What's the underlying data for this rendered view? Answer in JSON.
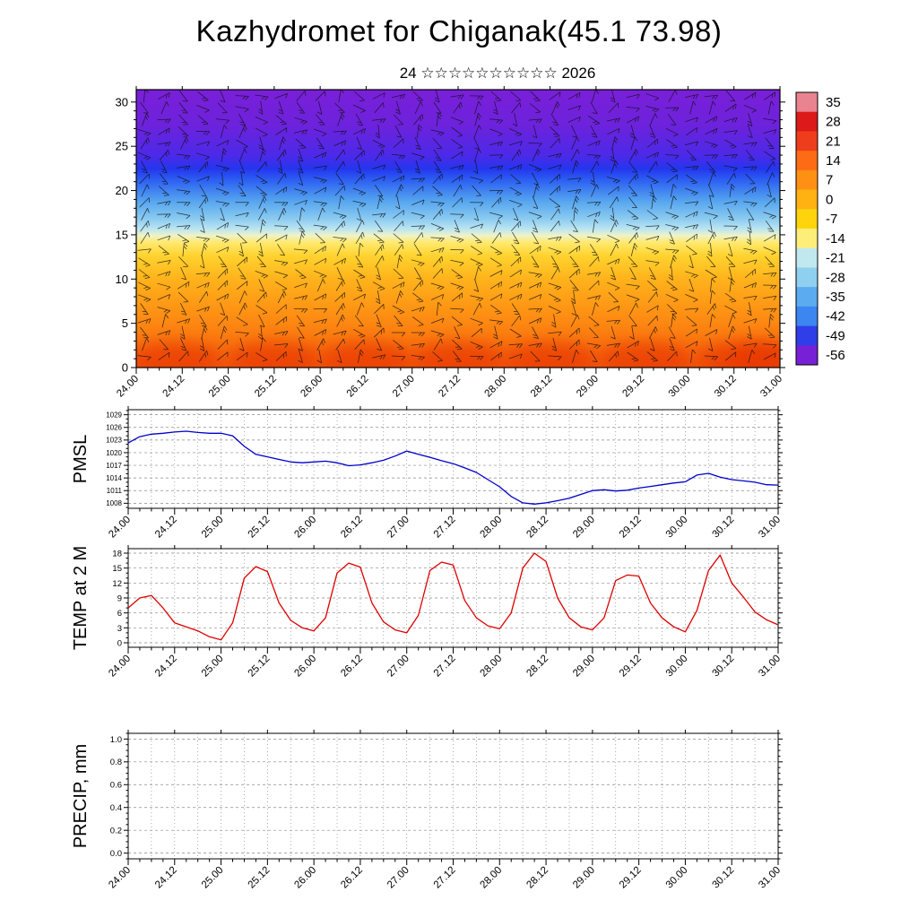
{
  "title": "Kazhydromet for Chiganak(45.1 73.98)",
  "subtitle": "24 ☆☆☆☆☆☆☆☆☆☆ 2026",
  "x_axis": {
    "labels": [
      "24.00",
      "24.12",
      "25.00",
      "25.12",
      "26.00",
      "26.12",
      "27.00",
      "27.12",
      "28.00",
      "28.12",
      "29.00",
      "29.12",
      "30.00",
      "30.12",
      "31.00"
    ],
    "hours_span": 168,
    "major_step_h": 12,
    "minor_step_h": 3,
    "grid_step_h": 6
  },
  "chart_data": [
    {
      "type": "heatmap",
      "name": "temperature-height-cross-section",
      "overlay": "wind-barbs",
      "ylim": [
        0,
        31.4
      ],
      "yticks": [
        0,
        5,
        10,
        15,
        20,
        25,
        30
      ],
      "colorbar": {
        "labels": [
          "35",
          "28",
          "21",
          "14",
          "7",
          "0",
          "-7",
          "-14",
          "-21",
          "-28",
          "-35",
          "-42",
          "-49",
          "-56"
        ],
        "colors": [
          "#e8838f",
          "#dc1a1a",
          "#ee3d1c",
          "#fd6c14",
          "#ff9013",
          "#ffb212",
          "#ffd40d",
          "#fdee7a",
          "#c2e8ef",
          "#8fd0f0",
          "#5aabf0",
          "#3c86f2",
          "#2f3ee8",
          "#7820d6"
        ]
      },
      "gradient_stops": [
        [
          0,
          "#7a1fd8"
        ],
        [
          0.13,
          "#6d22dc"
        ],
        [
          0.24,
          "#4a2ae8"
        ],
        [
          0.285,
          "#2436ee"
        ],
        [
          0.33,
          "#2e64f2"
        ],
        [
          0.4,
          "#55a4ef"
        ],
        [
          0.46,
          "#86c8f0"
        ],
        [
          0.5,
          "#b9e4f2"
        ],
        [
          0.525,
          "#eef3c8"
        ],
        [
          0.55,
          "#ffe96d"
        ],
        [
          0.6,
          "#ffd22e"
        ],
        [
          0.68,
          "#ffb31c"
        ],
        [
          0.78,
          "#ff9715"
        ],
        [
          0.88,
          "#fb7d10"
        ],
        [
          1,
          "#f2540c"
        ]
      ],
      "hotspot_color": "#e63205",
      "hotspot_times_h": [
        10,
        36,
        60,
        84,
        108,
        133,
        158,
        166
      ],
      "height_temperature_profile": {
        "heights": [
          0,
          5,
          10,
          13,
          15,
          17,
          19,
          21,
          23,
          30
        ],
        "temps_c": [
          14,
          10,
          5,
          -4,
          -14,
          -21,
          -30,
          -42,
          -49,
          -56
        ]
      }
    },
    {
      "type": "line",
      "name": "PMSL",
      "ylabel": "PMSL",
      "color": "#0000cc",
      "ylim": [
        1008,
        1029
      ],
      "yticks": [
        1008,
        1011,
        1014,
        1017,
        1020,
        1023,
        1026,
        1029
      ],
      "x_hours": [
        0,
        3,
        6,
        9,
        12,
        15,
        18,
        21,
        24,
        27,
        30,
        33,
        36,
        39,
        42,
        45,
        48,
        51,
        54,
        57,
        60,
        63,
        66,
        69,
        72,
        75,
        78,
        81,
        84,
        87,
        90,
        93,
        96,
        99,
        102,
        105,
        108,
        111,
        114,
        117,
        120,
        123,
        126,
        129,
        132,
        135,
        138,
        141,
        144,
        147,
        150,
        153,
        156,
        159,
        162,
        165,
        168
      ],
      "values": [
        1022.3,
        1023.8,
        1024.4,
        1024.6,
        1024.9,
        1025.1,
        1024.8,
        1024.6,
        1024.6,
        1024.0,
        1021.5,
        1019.6,
        1019.0,
        1018.4,
        1017.8,
        1017.6,
        1017.8,
        1018.0,
        1017.6,
        1016.9,
        1017.1,
        1017.6,
        1018.2,
        1019.2,
        1020.4,
        1019.6,
        1018.9,
        1018.1,
        1017.4,
        1016.4,
        1015.3,
        1013.6,
        1011.9,
        1009.6,
        1008.1,
        1007.8,
        1008.1,
        1008.6,
        1009.2,
        1010.1,
        1011.0,
        1011.2,
        1010.9,
        1011.1,
        1011.6,
        1012.0,
        1012.4,
        1012.8,
        1013.1,
        1014.7,
        1015.1,
        1014.2,
        1013.6,
        1013.3,
        1013.0,
        1012.4,
        1012.3
      ]
    },
    {
      "type": "line",
      "name": "TEMP at 2 M",
      "ylabel": "TEMP at 2 M",
      "color": "#dd0000",
      "ylim": [
        0,
        18
      ],
      "yticks": [
        0,
        3,
        6,
        9,
        12,
        15,
        18
      ],
      "x_hours": [
        0,
        3,
        6,
        9,
        12,
        15,
        18,
        21,
        24,
        27,
        30,
        33,
        36,
        39,
        42,
        45,
        48,
        51,
        54,
        57,
        60,
        63,
        66,
        69,
        72,
        75,
        78,
        81,
        84,
        87,
        90,
        93,
        96,
        99,
        102,
        105,
        108,
        111,
        114,
        117,
        120,
        123,
        126,
        129,
        132,
        135,
        138,
        141,
        144,
        147,
        150,
        153,
        156,
        159,
        162,
        165,
        168
      ],
      "values": [
        7.0,
        9.0,
        9.5,
        7.0,
        4.0,
        3.2,
        2.4,
        1.2,
        0.6,
        4.0,
        13.0,
        15.3,
        14.3,
        8.0,
        4.5,
        3.0,
        2.4,
        5.0,
        14.0,
        16.0,
        15.2,
        8.0,
        4.2,
        2.6,
        2.0,
        5.5,
        14.5,
        16.2,
        15.6,
        8.5,
        5.0,
        3.4,
        2.8,
        6.0,
        15.0,
        18.0,
        16.3,
        9.0,
        5.0,
        3.2,
        2.6,
        5.0,
        12.5,
        13.6,
        13.4,
        8.0,
        5.0,
        3.2,
        2.2,
        6.5,
        14.5,
        17.6,
        12.0,
        9.2,
        6.2,
        4.6,
        3.6
      ]
    },
    {
      "type": "line",
      "name": "PRECIP",
      "ylabel": "PRECIP, mm",
      "color": "#007700",
      "ylim": [
        0,
        1
      ],
      "yticks": [
        0,
        0.2,
        0.4,
        0.6,
        0.8,
        1
      ],
      "ytick_decimals": 1,
      "x_hours": [],
      "values": []
    }
  ]
}
